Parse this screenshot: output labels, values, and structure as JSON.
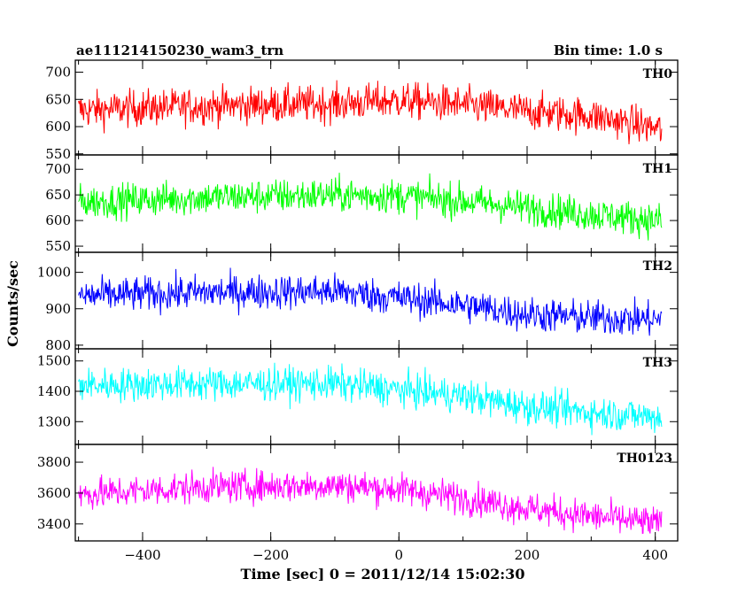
{
  "header": {
    "title": "ae111214150230_wam3_trn",
    "bin_time": "Bin time: 1.0 s"
  },
  "chart_data": {
    "type": "line",
    "title": "ae111214150230_wam3_trn",
    "xlabel": "Time [sec] 0 = 2011/12/14 15:02:30",
    "ylabel": "Counts/sec",
    "xlim": [
      -505,
      435
    ],
    "x_ticks": [
      "−400",
      "−200",
      "0",
      "200",
      "400"
    ],
    "x_tick_values": [
      -400,
      -200,
      0,
      200,
      400
    ],
    "x_range": [
      -500,
      410
    ],
    "bin_seconds": 1.0,
    "panels": [
      {
        "name": "TH0",
        "color": "#ff0000",
        "ylim": [
          548,
          722
        ],
        "y_ticks": [
          550,
          600,
          650,
          700
        ],
        "trend_x": [
          -500,
          -300,
          -100,
          0,
          100,
          200,
          300,
          410
        ],
        "trend_y": [
          630,
          638,
          642,
          648,
          640,
          628,
          620,
          595
        ],
        "noise": 24
      },
      {
        "name": "TH1",
        "color": "#00ff00",
        "ylim": [
          538,
          728
        ],
        "y_ticks": [
          550,
          600,
          650,
          700
        ],
        "trend_x": [
          -500,
          -300,
          -100,
          0,
          100,
          200,
          300,
          410
        ],
        "trend_y": [
          636,
          645,
          650,
          648,
          638,
          625,
          612,
          600
        ],
        "noise": 24
      },
      {
        "name": "TH2",
        "color": "#0000ff",
        "ylim": [
          790,
          1055
        ],
        "y_ticks": [
          800,
          900,
          1000
        ],
        "trend_x": [
          -500,
          -300,
          -100,
          0,
          100,
          200,
          300,
          410
        ],
        "trend_y": [
          935,
          945,
          948,
          930,
          910,
          885,
          875,
          870
        ],
        "noise": 34
      },
      {
        "name": "TH3",
        "color": "#00ffff",
        "ylim": [
          1225,
          1540
        ],
        "y_ticks": [
          1300,
          1400,
          1500
        ],
        "trend_x": [
          -500,
          -300,
          -100,
          0,
          100,
          200,
          300,
          410
        ],
        "trend_y": [
          1420,
          1425,
          1425,
          1405,
          1385,
          1350,
          1330,
          1315
        ],
        "noise": 40
      },
      {
        "name": "TH0123",
        "color": "#ff00ff",
        "ylim": [
          3290,
          3915
        ],
        "y_ticks": [
          3400,
          3600,
          3800
        ],
        "trend_x": [
          -500,
          -300,
          -100,
          0,
          100,
          200,
          300,
          410
        ],
        "trend_y": [
          3590,
          3640,
          3650,
          3625,
          3570,
          3500,
          3450,
          3400
        ],
        "noise": 75
      }
    ]
  }
}
